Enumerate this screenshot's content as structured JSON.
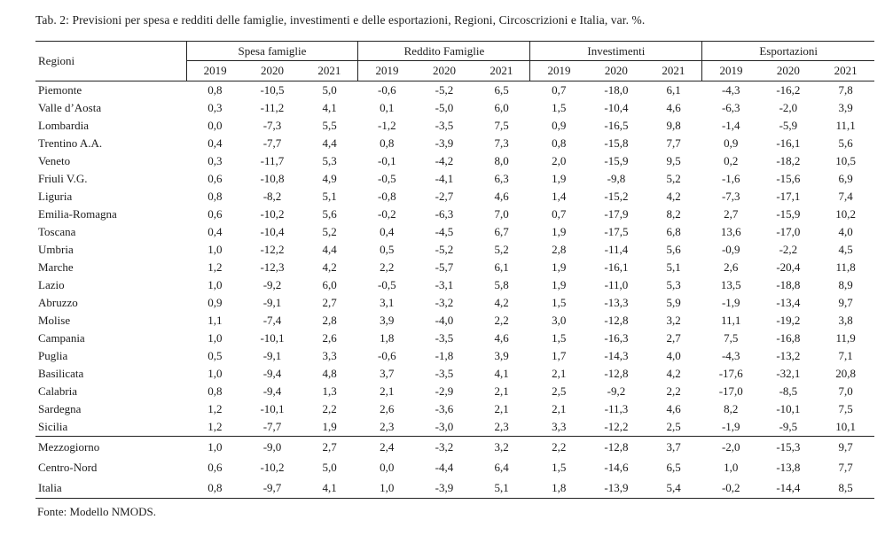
{
  "title": "Tab. 2: Previsioni per spesa e redditi delle famiglie, investimenti e delle esportazioni, Regioni, Circoscrizioni e Italia, var. %.",
  "source": "Fonte: Modello NMODS.",
  "table": {
    "row_header": "Regioni",
    "groups": [
      {
        "label": "Spesa famiglie",
        "years": [
          "2019",
          "2020",
          "2021"
        ]
      },
      {
        "label": "Reddito Famiglie",
        "years": [
          "2019",
          "2020",
          "2021"
        ]
      },
      {
        "label": "Investimenti",
        "years": [
          "2019",
          "2020",
          "2021"
        ]
      },
      {
        "label": "Esportazioni",
        "years": [
          "2019",
          "2020",
          "2021"
        ]
      }
    ],
    "regions": [
      {
        "name": "Piemonte",
        "values": [
          "0,8",
          "-10,5",
          "5,0",
          "-0,6",
          "-5,2",
          "6,5",
          "0,7",
          "-18,0",
          "6,1",
          "-4,3",
          "-16,2",
          "7,8"
        ]
      },
      {
        "name": "Valle d’Aosta",
        "values": [
          "0,3",
          "-11,2",
          "4,1",
          "0,1",
          "-5,0",
          "6,0",
          "1,5",
          "-10,4",
          "4,6",
          "-6,3",
          "-2,0",
          "3,9"
        ]
      },
      {
        "name": "Lombardia",
        "values": [
          "0,0",
          "-7,3",
          "5,5",
          "-1,2",
          "-3,5",
          "7,5",
          "0,9",
          "-16,5",
          "9,8",
          "-1,4",
          "-5,9",
          "11,1"
        ]
      },
      {
        "name": "Trentino A.A.",
        "values": [
          "0,4",
          "-7,7",
          "4,4",
          "0,8",
          "-3,9",
          "7,3",
          "0,8",
          "-15,8",
          "7,7",
          "0,9",
          "-16,1",
          "5,6"
        ]
      },
      {
        "name": "Veneto",
        "values": [
          "0,3",
          "-11,7",
          "5,3",
          "-0,1",
          "-4,2",
          "8,0",
          "2,0",
          "-15,9",
          "9,5",
          "0,2",
          "-18,2",
          "10,5"
        ]
      },
      {
        "name": "Friuli V.G.",
        "values": [
          "0,6",
          "-10,8",
          "4,9",
          "-0,5",
          "-4,1",
          "6,3",
          "1,9",
          "-9,8",
          "5,2",
          "-1,6",
          "-15,6",
          "6,9"
        ]
      },
      {
        "name": "Liguria",
        "values": [
          "0,8",
          "-8,2",
          "5,1",
          "-0,8",
          "-2,7",
          "4,6",
          "1,4",
          "-15,2",
          "4,2",
          "-7,3",
          "-17,1",
          "7,4"
        ]
      },
      {
        "name": "Emilia-Romagna",
        "values": [
          "0,6",
          "-10,2",
          "5,6",
          "-0,2",
          "-6,3",
          "7,0",
          "0,7",
          "-17,9",
          "8,2",
          "2,7",
          "-15,9",
          "10,2"
        ]
      },
      {
        "name": "Toscana",
        "values": [
          "0,4",
          "-10,4",
          "5,2",
          "0,4",
          "-4,5",
          "6,7",
          "1,9",
          "-17,5",
          "6,8",
          "13,6",
          "-17,0",
          "4,0"
        ]
      },
      {
        "name": "Umbria",
        "values": [
          "1,0",
          "-12,2",
          "4,4",
          "0,5",
          "-5,2",
          "5,2",
          "2,8",
          "-11,4",
          "5,6",
          "-0,9",
          "-2,2",
          "4,5"
        ]
      },
      {
        "name": "Marche",
        "values": [
          "1,2",
          "-12,3",
          "4,2",
          "2,2",
          "-5,7",
          "6,1",
          "1,9",
          "-16,1",
          "5,1",
          "2,6",
          "-20,4",
          "11,8"
        ]
      },
      {
        "name": "Lazio",
        "values": [
          "1,0",
          "-9,2",
          "6,0",
          "-0,5",
          "-3,1",
          "5,8",
          "1,9",
          "-11,0",
          "5,3",
          "13,5",
          "-18,8",
          "8,9"
        ]
      },
      {
        "name": "Abruzzo",
        "values": [
          "0,9",
          "-9,1",
          "2,7",
          "3,1",
          "-3,2",
          "4,2",
          "1,5",
          "-13,3",
          "5,9",
          "-1,9",
          "-13,4",
          "9,7"
        ]
      },
      {
        "name": "Molise",
        "values": [
          "1,1",
          "-7,4",
          "2,8",
          "3,9",
          "-4,0",
          "2,2",
          "3,0",
          "-12,8",
          "3,2",
          "11,1",
          "-19,2",
          "3,8"
        ]
      },
      {
        "name": "Campania",
        "values": [
          "1,0",
          "-10,1",
          "2,6",
          "1,8",
          "-3,5",
          "4,6",
          "1,5",
          "-16,3",
          "2,7",
          "7,5",
          "-16,8",
          "11,9"
        ]
      },
      {
        "name": "Puglia",
        "values": [
          "0,5",
          "-9,1",
          "3,3",
          "-0,6",
          "-1,8",
          "3,9",
          "1,7",
          "-14,3",
          "4,0",
          "-4,3",
          "-13,2",
          "7,1"
        ]
      },
      {
        "name": "Basilicata",
        "values": [
          "1,0",
          "-9,4",
          "4,8",
          "3,7",
          "-3,5",
          "4,1",
          "2,1",
          "-12,8",
          "4,2",
          "-17,6",
          "-32,1",
          "20,8"
        ]
      },
      {
        "name": "Calabria",
        "values": [
          "0,8",
          "-9,4",
          "1,3",
          "2,1",
          "-2,9",
          "2,1",
          "2,5",
          "-9,2",
          "2,2",
          "-17,0",
          "-8,5",
          "7,0"
        ]
      },
      {
        "name": "Sardegna",
        "values": [
          "1,2",
          "-10,1",
          "2,2",
          "2,6",
          "-3,6",
          "2,1",
          "2,1",
          "-11,3",
          "4,6",
          "8,2",
          "-10,1",
          "7,5"
        ]
      },
      {
        "name": "Sicilia",
        "values": [
          "1,2",
          "-7,7",
          "1,9",
          "2,3",
          "-3,0",
          "2,3",
          "3,3",
          "-12,2",
          "2,5",
          "-1,9",
          "-9,5",
          "10,1"
        ]
      }
    ],
    "totals": [
      {
        "name": "Mezzogiorno",
        "values": [
          "1,0",
          "-9,0",
          "2,7",
          "2,4",
          "-3,2",
          "3,2",
          "2,2",
          "-12,8",
          "3,7",
          "-2,0",
          "-15,3",
          "9,7"
        ]
      },
      {
        "name": "Centro-Nord",
        "values": [
          "0,6",
          "-10,2",
          "5,0",
          "0,0",
          "-4,4",
          "6,4",
          "1,5",
          "-14,6",
          "6,5",
          "1,0",
          "-13,8",
          "7,7"
        ]
      },
      {
        "name": "Italia",
        "values": [
          "0,8",
          "-9,7",
          "4,1",
          "1,0",
          "-3,9",
          "5,1",
          "1,8",
          "-13,9",
          "5,4",
          "-0,2",
          "-14,4",
          "8,5"
        ]
      }
    ]
  }
}
